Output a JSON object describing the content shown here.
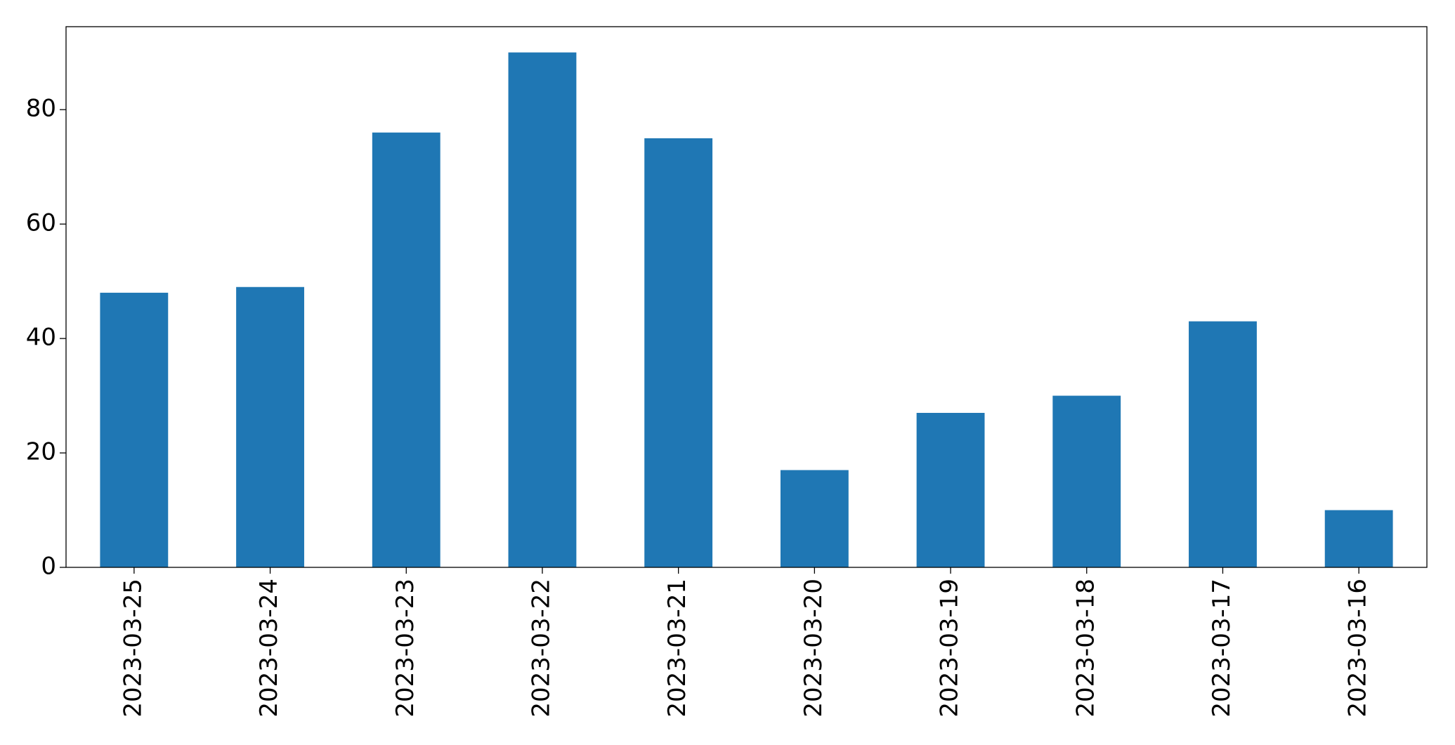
{
  "chart_data": {
    "type": "bar",
    "categories": [
      "2023-03-25",
      "2023-03-24",
      "2023-03-23",
      "2023-03-22",
      "2023-03-21",
      "2023-03-20",
      "2023-03-19",
      "2023-03-18",
      "2023-03-17",
      "2023-03-16"
    ],
    "values": [
      48,
      49,
      76,
      90,
      75,
      17,
      27,
      30,
      43,
      10
    ],
    "color": "#1f77b4",
    "ylim": [
      0,
      94.5
    ],
    "yticks": [
      0,
      20,
      40,
      60,
      80
    ],
    "grid": false
  }
}
